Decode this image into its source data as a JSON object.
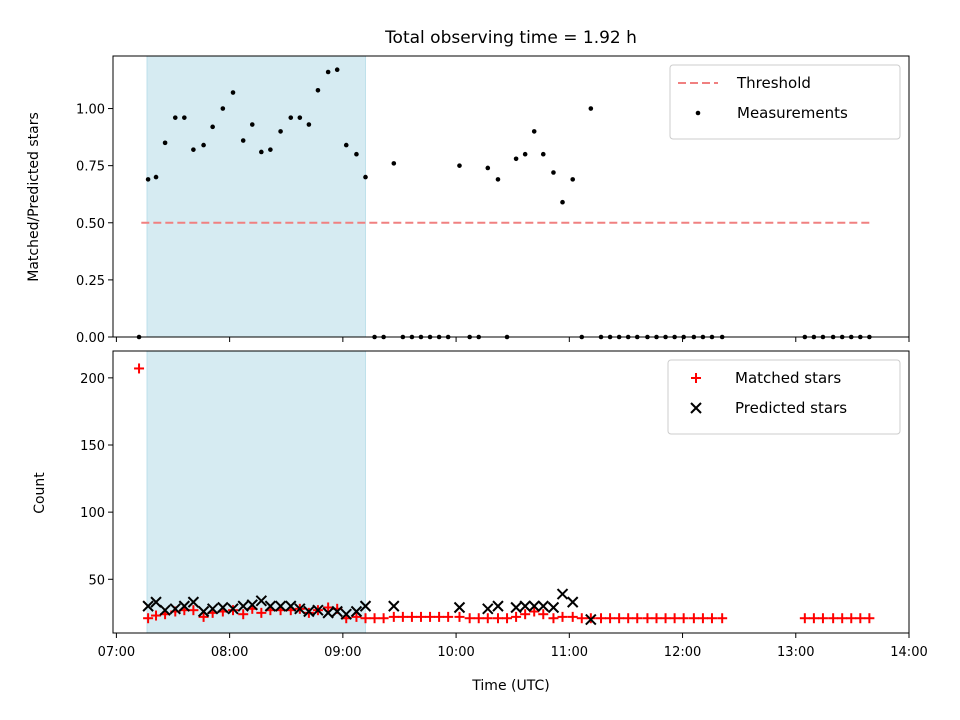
{
  "chart_data": [
    {
      "type": "scatter",
      "title": "Total observing time = 1.92 h",
      "xlabel": "",
      "ylabel": "Matched/Predicted stars",
      "xlim": [
        6.97,
        14.0
      ],
      "ylim": [
        0.0,
        1.23
      ],
      "yticks": [
        "0.00",
        "0.25",
        "0.50",
        "0.75",
        "1.00"
      ],
      "highlight_span_x": [
        7.27,
        9.2
      ],
      "legend_position": "top-right",
      "series": [
        {
          "name": "Threshold",
          "style": "dashed-line",
          "color": "#f08080",
          "x": [
            7.22,
            13.68
          ],
          "y": [
            0.5,
            0.5
          ]
        },
        {
          "name": "Measurements",
          "style": "dot",
          "color": "#000000",
          "x": [
            7.2,
            7.28,
            7.35,
            7.43,
            7.52,
            7.6,
            7.68,
            7.77,
            7.85,
            7.94,
            8.03,
            8.12,
            8.2,
            8.28,
            8.36,
            8.45,
            8.54,
            8.62,
            8.7,
            8.78,
            8.87,
            8.95,
            9.03,
            9.12,
            9.2,
            9.28,
            9.36,
            9.45,
            9.53,
            9.61,
            9.69,
            9.77,
            9.85,
            9.93,
            10.03,
            10.12,
            10.2,
            10.28,
            10.37,
            10.45,
            10.53,
            10.61,
            10.69,
            10.77,
            10.86,
            10.94,
            11.03,
            11.11,
            11.19,
            11.28,
            11.36,
            11.44,
            11.52,
            11.6,
            11.69,
            11.77,
            11.85,
            11.93,
            12.01,
            12.1,
            12.18,
            12.26,
            12.35,
            13.08,
            13.16,
            13.24,
            13.33,
            13.41,
            13.49,
            13.57,
            13.65
          ],
          "y": [
            0.0,
            0.69,
            0.7,
            0.85,
            0.96,
            0.96,
            0.82,
            0.84,
            0.92,
            1.0,
            1.07,
            0.86,
            0.93,
            0.81,
            0.82,
            0.9,
            0.96,
            0.96,
            0.93,
            1.08,
            1.16,
            1.17,
            0.84,
            0.8,
            0.7,
            0.0,
            0.0,
            0.76,
            0.0,
            0.0,
            0.0,
            0.0,
            0.0,
            0.0,
            0.75,
            0.0,
            0.0,
            0.74,
            0.69,
            0.0,
            0.78,
            0.8,
            0.9,
            0.8,
            0.72,
            0.59,
            0.69,
            0.0,
            1.0,
            0.0,
            0.0,
            0.0,
            0.0,
            0.0,
            0.0,
            0.0,
            0.0,
            0.0,
            0.0,
            0.0,
            0.0,
            0.0,
            0.0,
            0.0,
            0.0,
            0.0,
            0.0,
            0.0,
            0.0,
            0.0,
            0.0
          ]
        }
      ]
    },
    {
      "type": "scatter",
      "title": "",
      "xlabel": "Time (UTC)",
      "ylabel": "Count",
      "xlim": [
        6.97,
        14.0
      ],
      "ylim": [
        10,
        220
      ],
      "xticks": [
        "07:00",
        "08:00",
        "09:00",
        "10:00",
        "11:00",
        "12:00",
        "13:00",
        "14:00"
      ],
      "yticks": [
        "50",
        "100",
        "150",
        "200"
      ],
      "highlight_span_x": [
        7.27,
        9.2
      ],
      "legend_position": "top-right",
      "series": [
        {
          "name": "Matched stars",
          "style": "plus",
          "color": "#ff0000",
          "x": [
            7.2,
            7.28,
            7.35,
            7.43,
            7.52,
            7.6,
            7.68,
            7.77,
            7.85,
            7.94,
            8.03,
            8.12,
            8.2,
            8.28,
            8.36,
            8.45,
            8.54,
            8.62,
            8.7,
            8.78,
            8.87,
            8.95,
            9.03,
            9.12,
            9.2,
            9.28,
            9.36,
            9.45,
            9.53,
            9.61,
            9.69,
            9.77,
            9.85,
            9.93,
            10.03,
            10.12,
            10.2,
            10.28,
            10.37,
            10.45,
            10.53,
            10.61,
            10.69,
            10.77,
            10.86,
            10.94,
            11.03,
            11.11,
            11.19,
            11.28,
            11.36,
            11.44,
            11.52,
            11.6,
            11.69,
            11.77,
            11.85,
            11.93,
            12.01,
            12.1,
            12.18,
            12.26,
            12.35,
            13.08,
            13.16,
            13.24,
            13.33,
            13.41,
            13.49,
            13.57,
            13.65
          ],
          "y": [
            207,
            21,
            23,
            24,
            26,
            27,
            27,
            22,
            25,
            26,
            27,
            24,
            28,
            25,
            27,
            27,
            27,
            28,
            25,
            27,
            29,
            28,
            21,
            22,
            21,
            21,
            21,
            22,
            22,
            22,
            22,
            22,
            22,
            22,
            22,
            21,
            21,
            21,
            21,
            21,
            22,
            24,
            26,
            24,
            21,
            22,
            22,
            21,
            21,
            21,
            21,
            21,
            21,
            21,
            21,
            21,
            21,
            21,
            21,
            21,
            21,
            21,
            21,
            21,
            21,
            21,
            21,
            21,
            21,
            21,
            21
          ]
        },
        {
          "name": "Predicted stars",
          "style": "x",
          "color": "#000000",
          "x": [
            7.28,
            7.35,
            7.43,
            7.52,
            7.6,
            7.68,
            7.77,
            7.85,
            7.94,
            8.03,
            8.12,
            8.2,
            8.28,
            8.36,
            8.45,
            8.54,
            8.62,
            8.7,
            8.78,
            8.87,
            8.95,
            9.03,
            9.12,
            9.2,
            9.45,
            10.03,
            10.28,
            10.37,
            10.53,
            10.61,
            10.69,
            10.77,
            10.86,
            10.94,
            11.03,
            11.19
          ],
          "y": [
            30,
            33,
            27,
            28,
            30,
            33,
            26,
            28,
            29,
            28,
            30,
            31,
            34,
            30,
            30,
            30,
            28,
            26,
            27,
            25,
            26,
            24,
            26,
            30,
            30,
            29,
            28,
            30,
            29,
            30,
            30,
            30,
            29,
            39,
            33,
            20
          ]
        }
      ]
    }
  ]
}
